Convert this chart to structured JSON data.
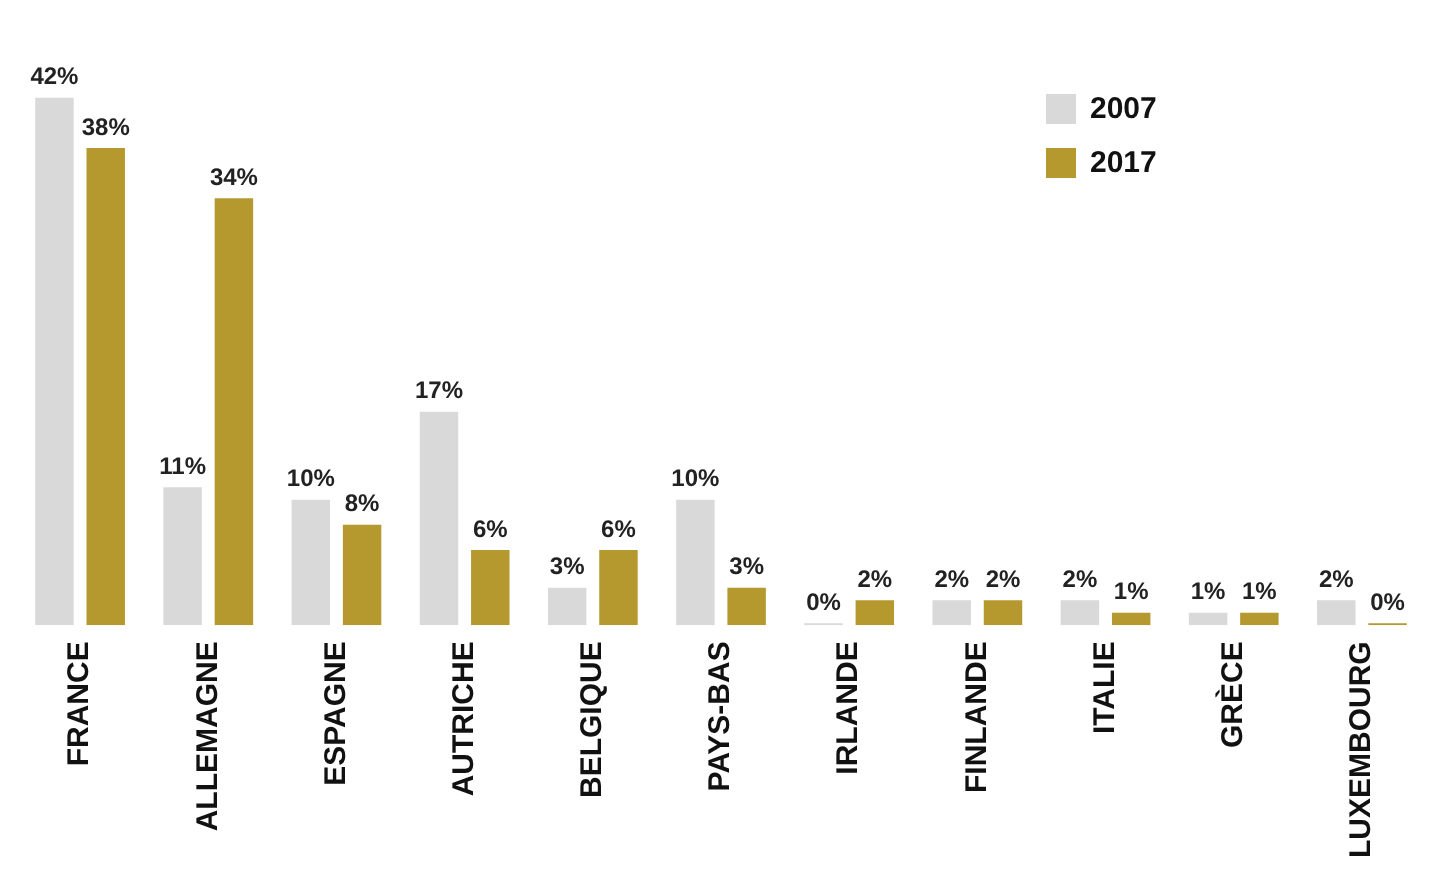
{
  "chart_data": {
    "type": "bar",
    "categories": [
      "FRANCE",
      "ALLEMAGNE",
      "ESPAGNE",
      "AUTRICHE",
      "BELGIQUE",
      "PAYS-BAS",
      "IRLANDE",
      "FINLANDE",
      "ITALIE",
      "GRÈCE",
      "LUXEMBOURG"
    ],
    "series": [
      {
        "name": "2007",
        "color": "#d9d9d9",
        "values": [
          42,
          11,
          10,
          17,
          3,
          10,
          0,
          2,
          2,
          1,
          2
        ],
        "value_labels": [
          "42%",
          "11%",
          "10%",
          "17%",
          "3%",
          "10%",
          "0%",
          "2%",
          "2%",
          "1%",
          "2%"
        ]
      },
      {
        "name": "2017",
        "color": "#b5992f",
        "values": [
          38,
          34,
          8,
          6,
          6,
          3,
          2,
          2,
          1,
          1,
          0
        ],
        "value_labels": [
          "38%",
          "34%",
          "8%",
          "6%",
          "6%",
          "3%",
          "2%",
          "2%",
          "1%",
          "1%",
          "0%"
        ]
      }
    ],
    "legend": "top right",
    "grid": false
  }
}
